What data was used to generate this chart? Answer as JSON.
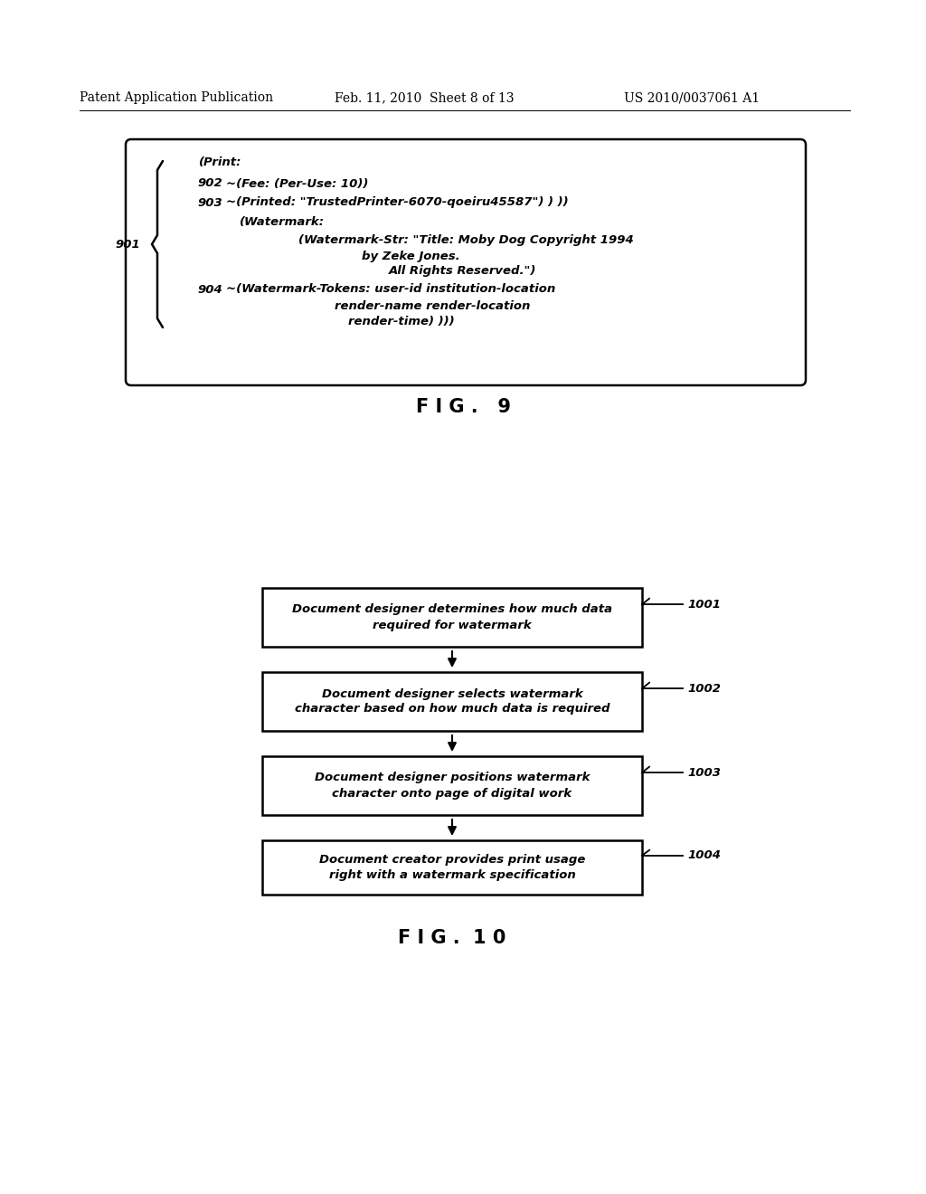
{
  "bg_color": "#ffffff",
  "header_left": "Patent Application Publication",
  "header_mid": "Feb. 11, 2010  Sheet 8 of 13",
  "header_right": "US 2010/0037061 A1",
  "fig9_label": "F I G .   9",
  "fig10_label": "F I G .  1 0",
  "ref901": "901",
  "ref902": "902",
  "ref903": "903",
  "ref904": "904",
  "flowchart_boxes": [
    "Document designer determines how much data\nrequired for watermark",
    "Document designer selects watermark\ncharacter based on how much data is required",
    "Document designer positions watermark\ncharacter onto page of digital work",
    "Document creator provides print usage\nright with a watermark specification"
  ],
  "flowchart_refs": [
    "1001",
    "1002",
    "1003",
    "1004"
  ]
}
